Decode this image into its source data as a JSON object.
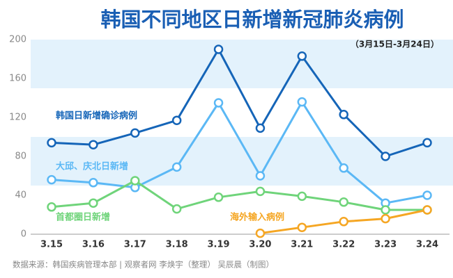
{
  "chart_data": {
    "type": "line",
    "title": "韩国不同地区日新增新冠肺炎病例",
    "subtitle": "（3月15日-3月24日）",
    "source": "数据来源：韩国疾病管理本部 | 观察者网 李焕宇（整理） 吴辰晨（制图）",
    "categories": [
      "3.15",
      "3.16",
      "3.17",
      "3.18",
      "3.19",
      "3.20",
      "3.21",
      "3.22",
      "3.23",
      "3.24"
    ],
    "series": [
      {
        "name": "韩国日新增确诊病例",
        "color": "#1565b8",
        "values": [
          94,
          92,
          104,
          117,
          190,
          109,
          183,
          123,
          80,
          94
        ]
      },
      {
        "name": "大邱、庆北日新增",
        "color": "#5bb8f5",
        "values": [
          56,
          53,
          48,
          69,
          135,
          60,
          136,
          68,
          32,
          40
        ]
      },
      {
        "name": "首都圈日新增",
        "color": "#6fd47a",
        "values": [
          28,
          32,
          55,
          26,
          38,
          44,
          39,
          33,
          25,
          25
        ]
      },
      {
        "name": "海外输入病例",
        "color": "#f5a623",
        "values": [
          null,
          null,
          null,
          null,
          null,
          1,
          7,
          13,
          16,
          25
        ]
      }
    ],
    "ylim": [
      0,
      200
    ],
    "yticks": [
      0,
      40,
      80,
      120,
      160,
      200
    ],
    "grid": false
  }
}
